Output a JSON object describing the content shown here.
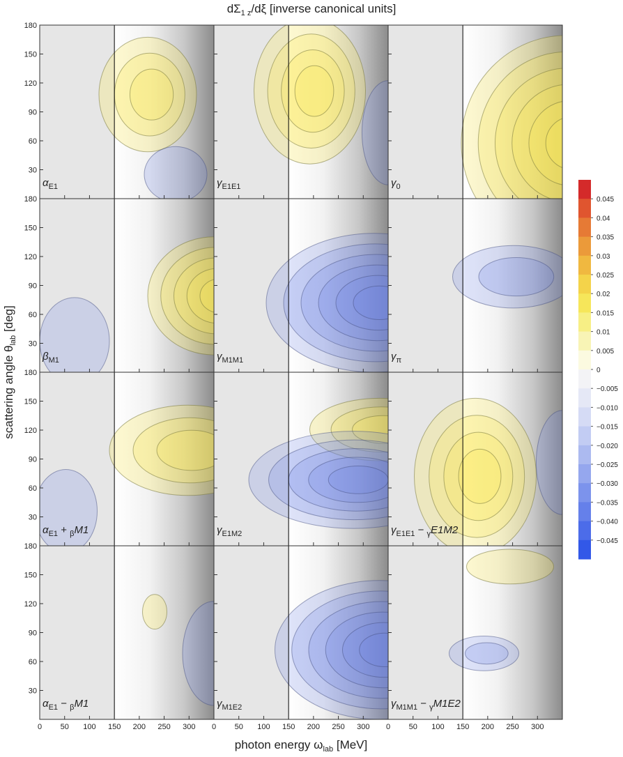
{
  "chart_data": {
    "type": "contour",
    "title": [
      "dΣ",
      "1 z",
      "/dξ [inverse canonical units]"
    ],
    "x_label": [
      "photon energy ω",
      "lab",
      " [MeV]"
    ],
    "y_label": [
      "scattering angle θ",
      "lab",
      " [deg]"
    ],
    "xlim": [
      0,
      350
    ],
    "xticks": [
      0,
      50,
      100,
      150,
      200,
      250,
      300
    ],
    "ylim": [
      0,
      180
    ],
    "yticks": [
      30,
      60,
      90,
      120,
      150,
      180
    ],
    "threshold": 150,
    "panels": [
      {
        "label": [
          "α",
          "E1"
        ]
      },
      {
        "label": [
          "γ",
          "E1E1"
        ]
      },
      {
        "label": [
          "γ",
          "0"
        ]
      },
      {
        "label": [
          "β",
          "M1"
        ]
      },
      {
        "label": [
          "γ",
          "M1M1"
        ]
      },
      {
        "label": [
          "γ",
          "π"
        ]
      },
      {
        "label": [
          "α",
          "E1",
          " + ",
          "β",
          "M1"
        ]
      },
      {
        "label": [
          "γ",
          "E1M2"
        ]
      },
      {
        "label": [
          "γ",
          "E1E1",
          " − ",
          "γ",
          "E1M2"
        ]
      },
      {
        "label": [
          "α",
          "E1",
          " − ",
          "β",
          "M1"
        ]
      },
      {
        "label": [
          "γ",
          "M1E2"
        ]
      },
      {
        "label": [
          "γ",
          "M1M1",
          " − ",
          "γ",
          "M1E2"
        ]
      }
    ],
    "colorbar": {
      "lim": [
        -0.05,
        0.05
      ],
      "ticks": [
        0.045,
        0.04,
        0.035,
        0.03,
        0.025,
        0.02,
        0.015,
        0.01,
        0.005,
        0,
        {
          "value": -0.005,
          "label": "−0.005"
        },
        {
          "value": -0.01,
          "label": "−0.010"
        },
        {
          "value": -0.015,
          "label": "−0.015"
        },
        {
          "value": -0.02,
          "label": "−0.020"
        },
        {
          "value": -0.025,
          "label": "−0.025"
        },
        {
          "value": -0.03,
          "label": "−0.030"
        },
        {
          "value": -0.035,
          "label": "−0.035"
        },
        {
          "value": -0.04,
          "label": "−0.040"
        },
        {
          "value": -0.045,
          "label": "−0.045"
        }
      ],
      "colors": [
        "#d42a2a",
        "#e0552f",
        "#e67a35",
        "#eb9a3a",
        "#f0b840",
        "#f4d34a",
        "#f6e65a",
        "#f7ef85",
        "#f8f4b5",
        "#fbfae0",
        "#f3f3f6",
        "#e5e8f6",
        "#d5dbf5",
        "#c2ccf3",
        "#acbaf0",
        "#95a7ee",
        "#7c93ec",
        "#6580ea",
        "#4c6ce9",
        "#3258e8"
      ]
    }
  }
}
